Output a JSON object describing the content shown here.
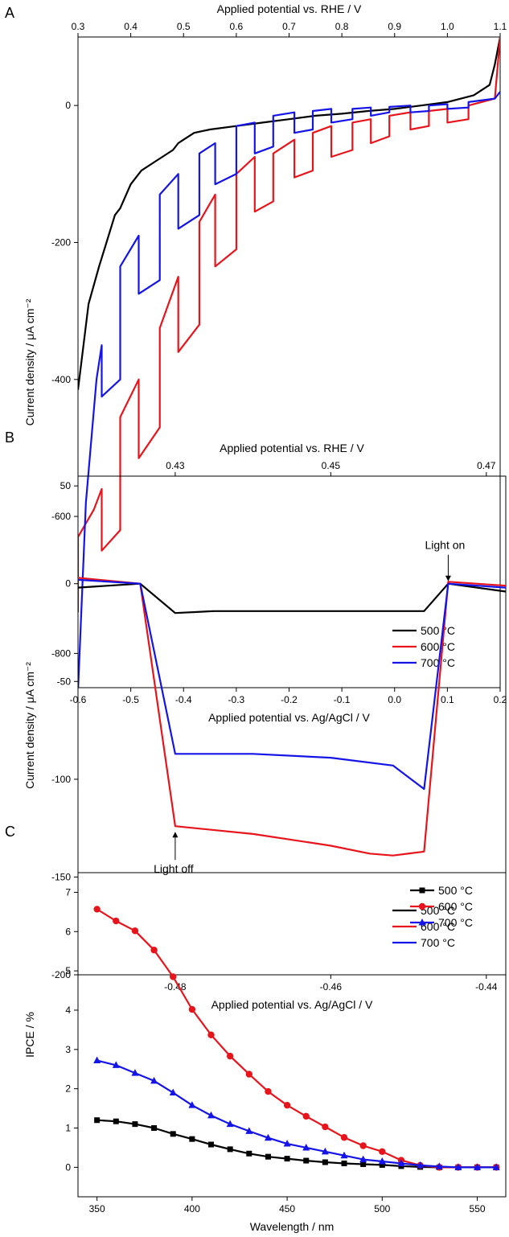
{
  "colors": {
    "500": "#000000",
    "600": "#e8141b",
    "700": "#1414e8"
  },
  "chart_data": [
    {
      "panel": "A",
      "type": "line",
      "xlabel": "Applied potential vs. Ag/AgCl / V",
      "x2label": "Applied potential vs. RHE / V",
      "ylabel": "Current density / μA cm⁻²",
      "xlim": [
        -0.6,
        0.2
      ],
      "x2lim": [
        0.3,
        1.1
      ],
      "ylim": [
        -850,
        100
      ],
      "xticks": [
        -0.6,
        -0.5,
        -0.4,
        -0.3,
        -0.2,
        -0.1,
        0.0,
        0.1,
        0.2
      ],
      "xtick_labels": [
        "-0.6",
        "-0.5",
        "-0.4",
        "-0.3",
        "-0.2",
        "-0.1",
        "0.0",
        "0.1",
        "0.2"
      ],
      "x2ticks": [
        0.3,
        0.4,
        0.5,
        0.6,
        0.7,
        0.8,
        0.9,
        1.0,
        1.1
      ],
      "x2tick_labels": [
        "0.3",
        "0.4",
        "0.5",
        "0.6",
        "0.7",
        "0.8",
        "0.9",
        "1.0",
        "1.1"
      ],
      "yticks": [
        0,
        -200,
        -400,
        -600,
        -800
      ],
      "ytick_labels": [
        "0",
        "-200",
        "-400",
        "-600",
        "-800"
      ],
      "legend": "bottom-right",
      "series": [
        {
          "name": "500 °C",
          "color": "#000000",
          "x": [
            -0.6,
            -0.58,
            -0.56,
            -0.55,
            -0.53,
            -0.52,
            -0.5,
            -0.48,
            -0.46,
            -0.44,
            -0.42,
            -0.41,
            -0.4,
            -0.38,
            -0.35,
            -0.3,
            -0.25,
            -0.2,
            -0.15,
            -0.1,
            -0.05,
            0.0,
            0.05,
            0.1,
            0.15,
            0.18,
            0.19,
            0.2
          ],
          "y": [
            -415,
            -290,
            -235,
            -210,
            -160,
            -150,
            -115,
            -95,
            -85,
            -75,
            -65,
            -55,
            -50,
            -40,
            -35,
            -30,
            -25,
            -20,
            -15,
            -12,
            -8,
            -5,
            0,
            5,
            15,
            30,
            60,
            100
          ]
        },
        {
          "name": "600 °C",
          "color": "#e8141b",
          "x": [
            -0.6,
            -0.6,
            -0.57,
            -0.555,
            -0.555,
            -0.52,
            -0.52,
            -0.485,
            -0.485,
            -0.445,
            -0.445,
            -0.41,
            -0.41,
            -0.37,
            -0.37,
            -0.34,
            -0.34,
            -0.3,
            -0.3,
            -0.265,
            -0.265,
            -0.23,
            -0.23,
            -0.19,
            -0.19,
            -0.155,
            -0.155,
            -0.12,
            -0.12,
            -0.08,
            -0.08,
            -0.045,
            -0.045,
            -0.01,
            -0.01,
            0.03,
            0.03,
            0.065,
            0.065,
            0.1,
            0.1,
            0.14,
            0.14,
            0.19,
            0.2
          ],
          "y": [
            -740,
            -630,
            -590,
            -560,
            -650,
            -620,
            -455,
            -400,
            -515,
            -470,
            -325,
            -250,
            -360,
            -320,
            -170,
            -130,
            -235,
            -210,
            -100,
            -75,
            -155,
            -140,
            -70,
            -50,
            -105,
            -95,
            -40,
            -30,
            -75,
            -65,
            -25,
            -20,
            -55,
            -45,
            -15,
            -10,
            -35,
            -30,
            -8,
            -5,
            -25,
            -20,
            0,
            10,
            100
          ]
        },
        {
          "name": "700 °C",
          "color": "#1414e8",
          "x": [
            -0.6,
            -0.585,
            -0.565,
            -0.555,
            -0.555,
            -0.52,
            -0.52,
            -0.485,
            -0.485,
            -0.445,
            -0.445,
            -0.41,
            -0.41,
            -0.37,
            -0.37,
            -0.34,
            -0.34,
            -0.3,
            -0.3,
            -0.265,
            -0.265,
            -0.23,
            -0.23,
            -0.19,
            -0.19,
            -0.155,
            -0.155,
            -0.12,
            -0.12,
            -0.08,
            -0.08,
            -0.045,
            -0.045,
            -0.01,
            -0.01,
            0.03,
            0.03,
            0.065,
            0.065,
            0.1,
            0.1,
            0.14,
            0.14,
            0.19,
            0.2
          ],
          "y": [
            -855,
            -580,
            -400,
            -350,
            -425,
            -400,
            -235,
            -190,
            -275,
            -255,
            -130,
            -100,
            -180,
            -160,
            -70,
            -55,
            -115,
            -100,
            -30,
            -25,
            -70,
            -60,
            -15,
            -10,
            -40,
            -35,
            -8,
            -5,
            -25,
            -20,
            -5,
            -3,
            -15,
            -10,
            -2,
            0,
            -10,
            -8,
            0,
            2,
            -5,
            -3,
            5,
            10,
            20
          ]
        }
      ]
    },
    {
      "panel": "B",
      "type": "line",
      "xlabel": "Applied potential vs. Ag/AgCl / V",
      "x2label": "Applied potential vs. RHE / V",
      "ylabel": "Current density / μA cm⁻²",
      "xlim": [
        -0.4925,
        -0.4375
      ],
      "x2lim": [
        0.4175,
        0.4725
      ],
      "ylim": [
        -200,
        55
      ],
      "xticks": [
        -0.48,
        -0.46,
        -0.44
      ],
      "xtick_labels": [
        "-0.48",
        "-0.46",
        "-0.44"
      ],
      "x2ticks": [
        0.43,
        0.45,
        0.47
      ],
      "x2tick_labels": [
        "0.43",
        "0.45",
        "0.47"
      ],
      "yticks": [
        50,
        0,
        -50,
        -100,
        -150,
        -200
      ],
      "ytick_labels": [
        "50",
        "0",
        "-50",
        "-100",
        "-150",
        "-200"
      ],
      "legend": "bottom-right",
      "annotations": [
        {
          "text": "Light on",
          "x": -0.4449,
          "y": 0
        },
        {
          "text": "Light off",
          "x": -0.48,
          "y": -124
        }
      ],
      "series": [
        {
          "name": "500 °C",
          "color": "#000000",
          "x": [
            -0.4925,
            -0.4845,
            -0.48,
            -0.475,
            -0.465,
            -0.455,
            -0.448,
            -0.4449,
            -0.4375
          ],
          "y": [
            -2,
            0,
            -15,
            -14,
            -14,
            -14,
            -14,
            0,
            -4
          ]
        },
        {
          "name": "600 °C",
          "color": "#e8141b",
          "x": [
            -0.4925,
            -0.4845,
            -0.48,
            -0.47,
            -0.46,
            -0.455,
            -0.452,
            -0.448,
            -0.4449,
            -0.4375
          ],
          "y": [
            3,
            0,
            -124,
            -128,
            -134,
            -138,
            -139,
            -137,
            1,
            -1
          ]
        },
        {
          "name": "700 °C",
          "color": "#1414e8",
          "x": [
            -0.4925,
            -0.4845,
            -0.48,
            -0.47,
            -0.46,
            -0.452,
            -0.448,
            -0.4449,
            -0.4375
          ],
          "y": [
            2,
            0,
            -87,
            -87,
            -89,
            -93,
            -105,
            0,
            -2
          ]
        }
      ]
    },
    {
      "panel": "C",
      "type": "line",
      "xlabel": "Wavelength / nm",
      "ylabel": "IPCE / %",
      "xlim": [
        340,
        565
      ],
      "ylim": [
        -0.75,
        7.5
      ],
      "xticks": [
        350,
        400,
        450,
        500,
        550
      ],
      "xtick_labels": [
        "350",
        "400",
        "450",
        "500",
        "550"
      ],
      "yticks": [
        0,
        1,
        2,
        3,
        4,
        5,
        6,
        7
      ],
      "ytick_labels": [
        "0",
        "1",
        "2",
        "3",
        "4",
        "5",
        "6",
        "7"
      ],
      "legend": "top-right",
      "x": [
        350,
        360,
        370,
        380,
        390,
        400,
        410,
        420,
        430,
        440,
        450,
        460,
        470,
        480,
        490,
        500,
        510,
        520,
        530,
        540,
        550,
        560
      ],
      "series": [
        {
          "name": "500 °C",
          "color": "#000000",
          "marker": "square",
          "values": [
            1.2,
            1.17,
            1.1,
            1.0,
            0.85,
            0.72,
            0.58,
            0.46,
            0.35,
            0.27,
            0.22,
            0.17,
            0.13,
            0.1,
            0.08,
            0.06,
            0.03,
            0.01,
            0.0,
            0.0,
            0.0,
            0.0
          ]
        },
        {
          "name": "600 °C",
          "color": "#e8141b",
          "marker": "circle",
          "values": [
            6.57,
            6.27,
            6.02,
            5.53,
            4.85,
            4.02,
            3.37,
            2.83,
            2.37,
            1.93,
            1.58,
            1.3,
            1.03,
            0.76,
            0.55,
            0.4,
            0.18,
            0.05,
            0.0,
            0.0,
            0.0,
            0.0
          ]
        },
        {
          "name": "700 °C",
          "color": "#1414e8",
          "marker": "triangle",
          "values": [
            2.72,
            2.6,
            2.4,
            2.2,
            1.9,
            1.58,
            1.32,
            1.1,
            0.92,
            0.75,
            0.6,
            0.5,
            0.4,
            0.3,
            0.2,
            0.15,
            0.1,
            0.05,
            0.02,
            0.0,
            0.0,
            0.0
          ]
        }
      ]
    }
  ],
  "panels": {
    "A": "A",
    "B": "B",
    "C": "C"
  }
}
